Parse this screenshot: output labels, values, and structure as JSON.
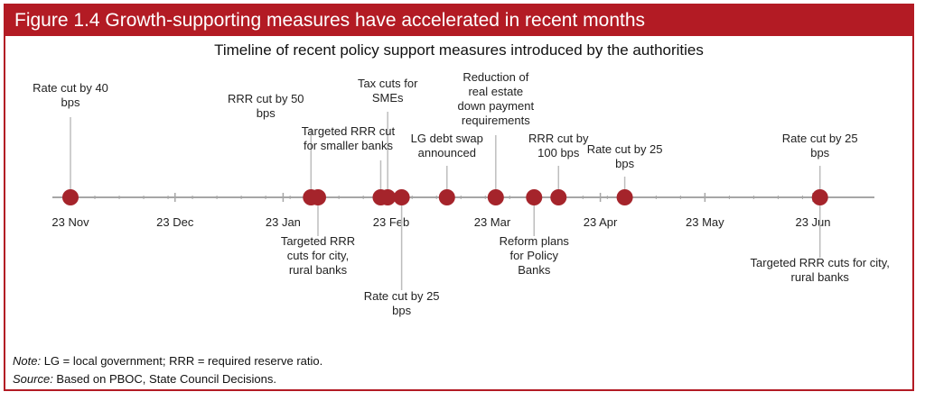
{
  "figure": {
    "banner": "Figure 1.4  Growth-supporting measures have accelerated in recent months",
    "subtitle": "Timeline of recent policy support measures introduced by the authorities"
  },
  "notes": {
    "note_label": "Note:",
    "note_text": " LG = local government; RRR = required reserve ratio.",
    "source_label": "Source:",
    "source_text": " Based on PBOC, State Council Decisions."
  },
  "colors": {
    "accent": "#b31b24",
    "marker": "#a5242b",
    "axis": "#a6a6a6"
  },
  "chart_data": {
    "type": "scatter",
    "title": "Timeline of recent policy support measures introduced by the authorities",
    "xlabel": "",
    "ylabel": "",
    "x_axis": "date",
    "xlim": [
      "2023-11-23",
      "2024-06-30"
    ],
    "tick_labels": [
      "23 Nov",
      "23 Dec",
      "23 Jan",
      "23 Feb",
      "23 Mar",
      "23 Apr",
      "23 May",
      "23 Jun"
    ],
    "ticks": [
      "2023-11-23",
      "2023-12-23",
      "2024-01-23",
      "2024-02-23",
      "2024-03-23",
      "2024-04-23",
      "2024-05-23",
      "2024-06-23"
    ],
    "events": [
      {
        "date": "2023-11-23",
        "label": "Rate cut by 40\nbps",
        "side": "above"
      },
      {
        "date": "2024-01-31",
        "label": "RRR cut by 50\nbps",
        "side": "above"
      },
      {
        "date": "2024-02-02",
        "label": "Targeted RRR\ncuts for city,\nrural banks",
        "side": "below"
      },
      {
        "date": "2024-02-20",
        "label": "Targeted RRR cut\nfor smaller banks",
        "side": "above"
      },
      {
        "date": "2024-02-22",
        "label": "Tax cuts for\nSMEs",
        "side": "above"
      },
      {
        "date": "2024-02-26",
        "label": "Rate cut by 25\nbps",
        "side": "below"
      },
      {
        "date": "2024-03-10",
        "label": "LG debt swap\nannounced",
        "side": "above"
      },
      {
        "date": "2024-03-24",
        "label": "Reduction of\nreal estate\ndown payment\nrequirements",
        "side": "above"
      },
      {
        "date": "2024-04-04",
        "label": "Reform plans\nfor Policy\nBanks",
        "side": "below"
      },
      {
        "date": "2024-04-11",
        "label": "RRR cut by\n100 bps",
        "side": "above"
      },
      {
        "date": "2024-04-30",
        "label": "Rate cut by 25\nbps",
        "side": "above"
      },
      {
        "date": "2024-06-25",
        "label": "Rate cut by 25\nbps",
        "side": "above"
      },
      {
        "date": "2024-06-25",
        "label": "Targeted RRR cuts for city,\nrural banks",
        "side": "below"
      }
    ]
  }
}
